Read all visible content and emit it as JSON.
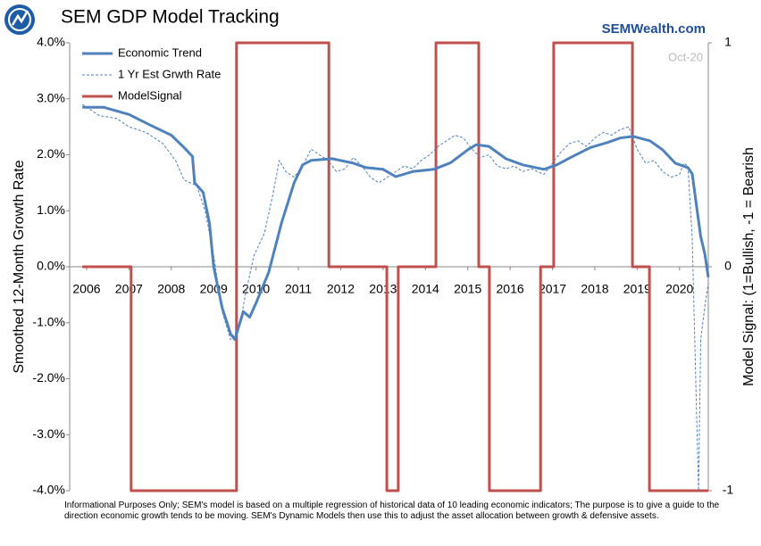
{
  "chart_data": {
    "type": "line",
    "title": "SEM GDP Model Tracking",
    "source": "SEMWealth.com",
    "date_label": "Oct-20",
    "ylabel": "Smoothed 12-Month Growth Rate",
    "y2label": "Model Signal: (1=Bullish, -1 = Bearish",
    "footnote": "Informational Purposes Only; SEM's model is based on a multiple regression of historical data of 10 leading economic indicators; The purpose is to give a guide to the direction economic growth tends to be moving. SEM's Dynamic Models then use this to adjust the asset allocation between growth & defensive assets.",
    "xlim": [
      2005.6,
      2020.68
    ],
    "xticks": [
      2006,
      2007,
      2008,
      2009,
      2010,
      2011,
      2012,
      2013,
      2014,
      2015,
      2016,
      2017,
      2018,
      2019,
      2020
    ],
    "ylim": [
      -4,
      4
    ],
    "yticks": [
      {
        "value": -4,
        "label": "-4.0%"
      },
      {
        "value": -3,
        "label": "-3.0%"
      },
      {
        "value": -2,
        "label": "-2.0%"
      },
      {
        "value": -1,
        "label": "-1.0%"
      },
      {
        "value": 0,
        "label": "0.0%"
      },
      {
        "value": 1,
        "label": "1.0%"
      },
      {
        "value": 2,
        "label": "2.0%"
      },
      {
        "value": 3,
        "label": "3.0%"
      },
      {
        "value": 4,
        "label": "4.0%"
      }
    ],
    "y2lim": [
      -1,
      1
    ],
    "y2ticks": [
      -1,
      0,
      1
    ],
    "legend": "upper left",
    "series": [
      {
        "name": "Economic Trend",
        "color": "#4f81bd",
        "style": "solid",
        "x": [
          2005.9,
          2006.4,
          2007.0,
          2007.5,
          2008.0,
          2008.3,
          2008.5,
          2008.55,
          2008.75,
          2008.9,
          2009.0,
          2009.2,
          2009.4,
          2009.5,
          2009.7,
          2009.85,
          2010.0,
          2010.3,
          2010.6,
          2010.9,
          2011.1,
          2011.3,
          2011.8,
          2012.3,
          2012.6,
          2013.0,
          2013.3,
          2013.7,
          2014.2,
          2014.6,
          2015.0,
          2015.2,
          2015.5,
          2015.9,
          2016.3,
          2016.8,
          2017.1,
          2017.5,
          2017.9,
          2018.3,
          2018.6,
          2018.9,
          2019.3,
          2019.6,
          2019.9,
          2020.2,
          2020.3,
          2020.4,
          2020.5,
          2020.6,
          2020.68
        ],
        "values": [
          2.85,
          2.85,
          2.72,
          2.53,
          2.35,
          2.13,
          1.97,
          1.5,
          1.33,
          0.78,
          0,
          -0.73,
          -1.2,
          -1.3,
          -0.8,
          -0.9,
          -0.65,
          -0.1,
          0.78,
          1.5,
          1.82,
          1.9,
          1.93,
          1.85,
          1.77,
          1.74,
          1.61,
          1.7,
          1.74,
          1.86,
          2.09,
          2.18,
          2.15,
          1.93,
          1.82,
          1.74,
          1.82,
          1.98,
          2.13,
          2.22,
          2.3,
          2.33,
          2.25,
          2.09,
          1.85,
          1.77,
          1.66,
          1.1,
          0.54,
          0.22,
          -0.19
        ]
      },
      {
        "name": "1 Yr Est Grwth Rate",
        "color": "#4f81bd",
        "style": "dashed",
        "x": [
          2005.9,
          2006.3,
          2006.7,
          2007.0,
          2007.4,
          2007.8,
          2008.1,
          2008.3,
          2008.6,
          2008.8,
          2009.0,
          2009.2,
          2009.4,
          2009.6,
          2009.75,
          2009.95,
          2010.2,
          2010.4,
          2010.55,
          2010.7,
          2010.9,
          2011.1,
          2011.3,
          2011.5,
          2011.7,
          2011.9,
          2012.1,
          2012.3,
          2012.5,
          2012.7,
          2012.9,
          2013.1,
          2013.3,
          2013.5,
          2013.7,
          2013.9,
          2014.1,
          2014.3,
          2014.5,
          2014.7,
          2014.9,
          2015.1,
          2015.3,
          2015.5,
          2015.7,
          2015.9,
          2016.1,
          2016.3,
          2016.5,
          2016.8,
          2017.0,
          2017.2,
          2017.4,
          2017.6,
          2017.8,
          2018.0,
          2018.2,
          2018.4,
          2018.6,
          2018.8,
          2019.0,
          2019.2,
          2019.4,
          2019.6,
          2019.8,
          2020.0,
          2020.1,
          2020.2,
          2020.3,
          2020.4,
          2020.45,
          2020.5,
          2020.6,
          2020.68
        ],
        "values": [
          2.9,
          2.7,
          2.65,
          2.5,
          2.4,
          2.2,
          1.9,
          1.55,
          1.45,
          1.0,
          0.2,
          -0.8,
          -1.3,
          -1.1,
          -0.5,
          0.2,
          0.6,
          1.3,
          1.9,
          1.7,
          1.6,
          1.8,
          2.1,
          2.0,
          1.9,
          1.7,
          1.75,
          1.95,
          1.8,
          1.6,
          1.5,
          1.6,
          1.7,
          1.8,
          1.75,
          1.9,
          2.0,
          2.15,
          2.25,
          2.35,
          2.3,
          2.1,
          1.95,
          2.0,
          1.8,
          1.75,
          1.8,
          1.7,
          1.75,
          1.65,
          1.85,
          2.05,
          2.2,
          2.25,
          2.15,
          2.3,
          2.4,
          2.35,
          2.45,
          2.5,
          2.1,
          1.85,
          1.9,
          1.7,
          1.6,
          1.65,
          1.85,
          1.8,
          0.5,
          -2.5,
          -4.0,
          -1.3,
          -0.7,
          -0.3
        ]
      },
      {
        "name": "ModelSignal",
        "color": "#c0504d",
        "style": "solid",
        "axis": "y2",
        "x": [
          2005.9,
          2007.05,
          2007.05,
          2009.54,
          2009.54,
          2011.72,
          2011.72,
          2013.09,
          2013.09,
          2013.36,
          2013.36,
          2014.25,
          2014.25,
          2015.26,
          2015.26,
          2015.51,
          2015.51,
          2016.72,
          2016.72,
          2017.03,
          2017.03,
          2018.89,
          2018.89,
          2019.29,
          2019.29,
          2020.68
        ],
        "values": [
          0,
          0,
          -1,
          -1,
          1,
          1,
          0,
          0,
          -1,
          -1,
          0,
          0,
          1,
          1,
          0,
          0,
          -1,
          -1,
          0,
          0,
          1,
          1,
          0,
          0,
          -1,
          -1
        ]
      }
    ]
  }
}
